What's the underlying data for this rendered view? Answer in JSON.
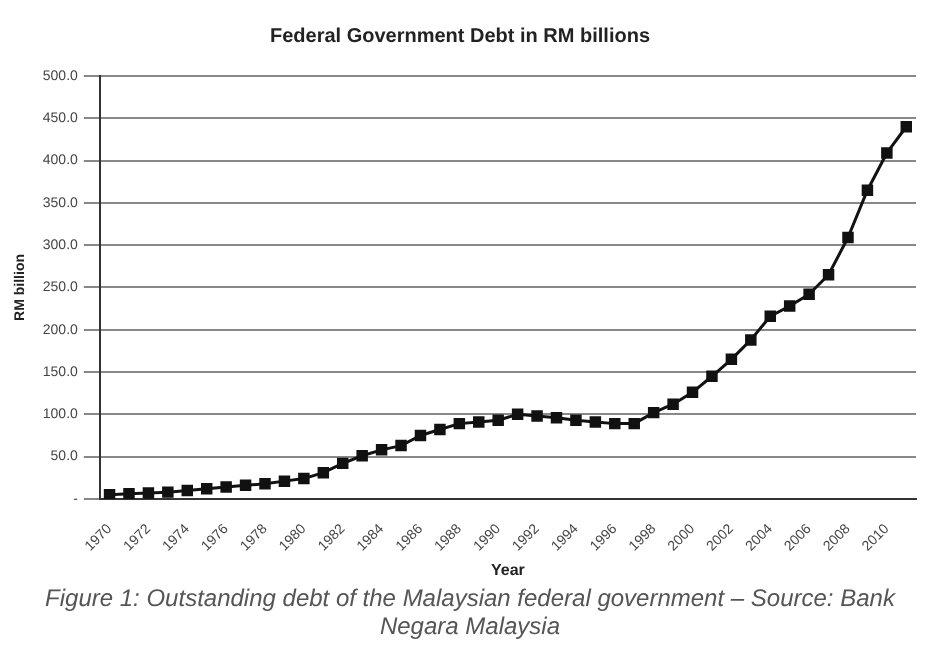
{
  "chart_data": {
    "type": "line",
    "title": "Federal Government Debt in RM billions",
    "xlabel": "Year",
    "ylabel": "RM billion",
    "annotations": [
      "Figure 1: Outstanding debt of the Malaysian federal government – Source: Bank Negara Malaysia"
    ],
    "categories": [
      "1970",
      null,
      "1972",
      null,
      "1974",
      null,
      "1976",
      null,
      "1978",
      null,
      "1980",
      null,
      "1982",
      null,
      "1984",
      null,
      "1986",
      null,
      "1988",
      null,
      "1990",
      null,
      "1992",
      null,
      "1994",
      null,
      "1996",
      null,
      "1998",
      null,
      "2000",
      null,
      "2002",
      null,
      "2004",
      null,
      "2006",
      null,
      "2008",
      null,
      "2010",
      null
    ],
    "series": [
      {
        "color": "#111111",
        "values": [
          5,
          6,
          7,
          8,
          10,
          12,
          14,
          16,
          18,
          21,
          24,
          31,
          42,
          51,
          58,
          63,
          75,
          82,
          89,
          91,
          93,
          100,
          98,
          96,
          93,
          91,
          89,
          89,
          102,
          112,
          126,
          145,
          165,
          188,
          216,
          228,
          242,
          265,
          309,
          365,
          409,
          440
        ]
      }
    ],
    "ylim": [
      0,
      500
    ],
    "yticks": [
      {
        "value": 0,
        "label": "-"
      },
      {
        "value": 50,
        "label": "50.0"
      },
      {
        "value": 100,
        "label": "100.0"
      },
      {
        "value": 150,
        "label": "150.0"
      },
      {
        "value": 200,
        "label": "200.0"
      },
      {
        "value": 250,
        "label": "250.0"
      },
      {
        "value": 300,
        "label": "300.0"
      },
      {
        "value": 350,
        "label": "350.0"
      },
      {
        "value": 400,
        "label": "400.0"
      },
      {
        "value": 450,
        "label": "450.0"
      },
      {
        "value": 500,
        "label": "500.0"
      }
    ],
    "grid": "y",
    "legend": false,
    "marker": "square",
    "line_style": "solid"
  }
}
